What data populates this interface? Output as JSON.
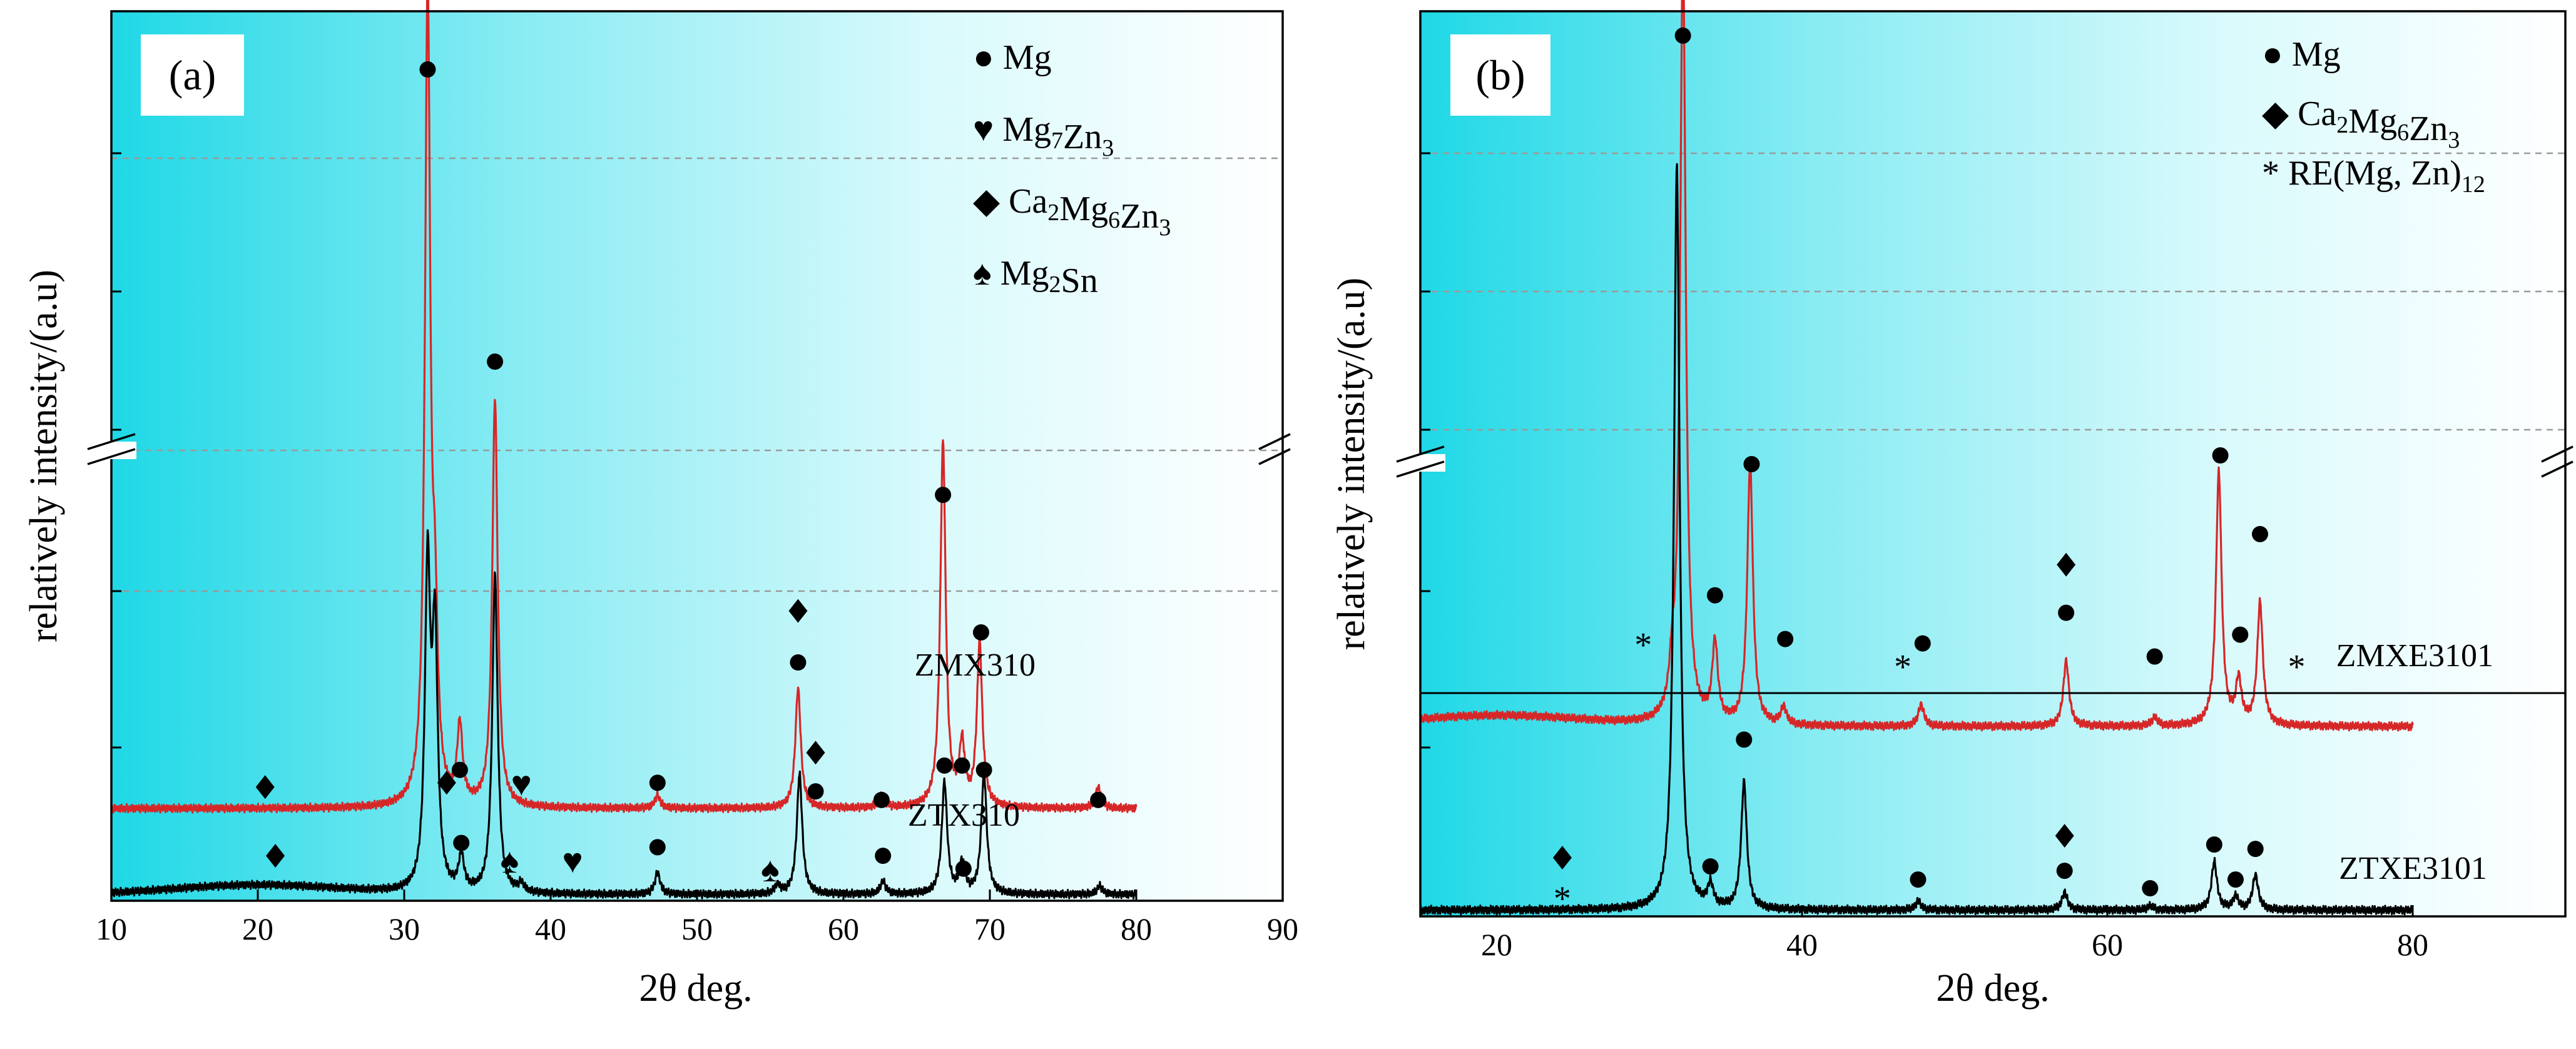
{
  "chart_data": [
    {
      "panel": "(a)",
      "type": "line",
      "xlabel": "2θ deg.",
      "ylabel": "relatively intensity/(a.u)",
      "xlim": [
        10,
        90
      ],
      "xticks": [
        10,
        20,
        30,
        40,
        50,
        60,
        70,
        80,
        90
      ],
      "y_axis_break": true,
      "legend": [
        {
          "symbol": "circle",
          "glyph": "●",
          "parts": [
            {
              "t": "Mg"
            }
          ]
        },
        {
          "symbol": "heart",
          "glyph": "♥",
          "parts": [
            {
              "t": "Mg"
            },
            {
              "t": "7",
              "sub": true
            },
            {
              "t": "Zn"
            },
            {
              "t": "3",
              "sub": true
            }
          ]
        },
        {
          "symbol": "diamond",
          "glyph": "◆",
          "parts": [
            {
              "t": "Ca"
            },
            {
              "t": "2",
              "sub": true
            },
            {
              "t": "Mg"
            },
            {
              "t": "6",
              "sub": true
            },
            {
              "t": "Zn"
            },
            {
              "t": "3",
              "sub": true
            }
          ]
        },
        {
          "symbol": "spade",
          "glyph": "♠",
          "parts": [
            {
              "t": "Mg"
            },
            {
              "t": "2",
              "sub": true
            },
            {
              "t": "Sn"
            }
          ]
        }
      ],
      "series": [
        {
          "name": "ZMX310",
          "color": "#d62728",
          "x_range": [
            10,
            80
          ],
          "baseline": 0.2,
          "hump_height": 0,
          "peaks": [
            [
              31.6,
              1.88
            ],
            [
              32.1,
              0.35
            ],
            [
              33.8,
              0.18
            ],
            [
              36.2,
              0.95
            ],
            [
              47.3,
              0.03
            ],
            [
              56.9,
              0.28
            ],
            [
              62.6,
              0.03
            ],
            [
              66.8,
              0.85
            ],
            [
              68.1,
              0.14
            ],
            [
              69.3,
              0.38
            ],
            [
              77.4,
              0.05
            ]
          ],
          "markers": [
            [
              20.5,
              0.25,
              "diamond"
            ],
            [
              31.6,
              1.92,
              "circle"
            ],
            [
              32.9,
              0.26,
              "diamond"
            ],
            [
              33.8,
              0.29,
              "circle"
            ],
            [
              36.2,
              1.24,
              "circle"
            ],
            [
              38.0,
              0.26,
              "heart"
            ],
            [
              47.3,
              0.26,
              "circle"
            ],
            [
              56.9,
              0.54,
              "circle"
            ],
            [
              56.9,
              0.66,
              "diamond"
            ],
            [
              62.6,
              0.22,
              "circle"
            ],
            [
              66.8,
              0.93,
              "circle"
            ],
            [
              68.1,
              0.3,
              "circle"
            ],
            [
              69.4,
              0.61,
              "circle"
            ],
            [
              77.4,
              0.22,
              "circle"
            ]
          ]
        },
        {
          "name": "ZTX310",
          "color": "#000000",
          "x_range": [
            10,
            80
          ],
          "baseline": 0.0,
          "hump_height": 0.022,
          "peaks": [
            [
              31.6,
              0.74
            ],
            [
              32.1,
              0.58
            ],
            [
              33.9,
              0.08
            ],
            [
              36.2,
              0.74
            ],
            [
              38.0,
              0.02
            ],
            [
              47.3,
              0.05
            ],
            [
              55.5,
              0.02
            ],
            [
              57.0,
              0.28
            ],
            [
              62.7,
              0.03
            ],
            [
              66.9,
              0.26
            ],
            [
              68.1,
              0.07
            ],
            [
              69.6,
              0.28
            ],
            [
              77.5,
              0.02
            ]
          ],
          "markers": [
            [
              21.2,
              0.09,
              "diamond"
            ],
            [
              33.9,
              0.12,
              "circle"
            ],
            [
              37.2,
              0.08,
              "spade"
            ],
            [
              41.5,
              0.08,
              "heart"
            ],
            [
              47.3,
              0.11,
              "circle"
            ],
            [
              55.0,
              0.06,
              "spade"
            ],
            [
              58.1,
              0.24,
              "circle"
            ],
            [
              58.1,
              0.33,
              "diamond"
            ],
            [
              62.7,
              0.09,
              "circle"
            ],
            [
              66.9,
              0.3,
              "circle"
            ],
            [
              68.2,
              0.06,
              "circle"
            ],
            [
              69.6,
              0.29,
              "circle"
            ]
          ]
        }
      ]
    },
    {
      "panel": "(b)",
      "type": "line",
      "xlabel": "2θ deg.",
      "ylabel": "relatively intensity/(a.u)",
      "xlim": [
        15,
        90
      ],
      "xticks": [
        20,
        40,
        60,
        80
      ],
      "y_axis_break": true,
      "legend": [
        {
          "symbol": "circle",
          "glyph": "●",
          "parts": [
            {
              "t": "Mg"
            }
          ]
        },
        {
          "symbol": "diamond",
          "glyph": "◆",
          "parts": [
            {
              "t": "Ca"
            },
            {
              "t": "2",
              "sub": true
            },
            {
              "t": "Mg"
            },
            {
              "t": "6",
              "sub": true
            },
            {
              "t": "Zn"
            },
            {
              "t": "3",
              "sub": true
            }
          ]
        },
        {
          "symbol": "asterisk",
          "glyph": "*",
          "parts": [
            {
              "t": "RE(Mg, Zn)"
            },
            {
              "t": "12",
              "sub": true
            }
          ]
        }
      ],
      "series": [
        {
          "name": "ZMXE3101",
          "color": "#d62728",
          "x_range": [
            15,
            80
          ],
          "baseline": 0.42,
          "hump_height": 0.025,
          "peaks": [
            [
              31.5,
              0.08
            ],
            [
              32.2,
              1.78
            ],
            [
              34.3,
              0.18
            ],
            [
              36.6,
              0.6
            ],
            [
              38.8,
              0.04
            ],
            [
              47.8,
              0.05
            ],
            [
              57.3,
              0.15
            ],
            [
              63.1,
              0.02
            ],
            [
              67.3,
              0.58
            ],
            [
              68.6,
              0.1
            ],
            [
              70.0,
              0.28
            ]
          ],
          "markers": [
            [
              32.2,
              2.0,
              "circle"
            ],
            [
              36.7,
              1.02,
              "circle"
            ],
            [
              34.3,
              0.72,
              "circle"
            ],
            [
              38.9,
              0.62,
              "circle"
            ],
            [
              47.9,
              0.61,
              "circle"
            ],
            [
              57.3,
              0.68,
              "circle"
            ],
            [
              57.3,
              0.79,
              "diamond"
            ],
            [
              63.1,
              0.58,
              "circle"
            ],
            [
              67.4,
              1.04,
              "circle"
            ],
            [
              68.7,
              0.63,
              "circle"
            ],
            [
              70.0,
              0.86,
              "circle"
            ],
            [
              29.6,
              0.62,
              "asterisk"
            ],
            [
              46.6,
              0.57,
              "asterisk"
            ],
            [
              72.4,
              0.57,
              "asterisk"
            ]
          ]
        },
        {
          "name": "ZTXE3101",
          "color": "#000000",
          "x_range": [
            15,
            80
          ],
          "baseline": 0.0,
          "hump_height": 0,
          "peaks": [
            [
              31.8,
              1.7
            ],
            [
              34.0,
              0.05
            ],
            [
              36.2,
              0.29
            ],
            [
              47.6,
              0.02
            ],
            [
              57.2,
              0.04
            ],
            [
              62.8,
              0.01
            ],
            [
              67.0,
              0.11
            ],
            [
              68.4,
              0.03
            ],
            [
              69.7,
              0.08
            ]
          ],
          "markers": [
            [
              34.0,
              0.1,
              "circle"
            ],
            [
              36.2,
              0.39,
              "circle"
            ],
            [
              24.3,
              0.12,
              "diamond"
            ],
            [
              24.3,
              0.04,
              "asterisk"
            ],
            [
              47.6,
              0.07,
              "circle"
            ],
            [
              57.2,
              0.09,
              "circle"
            ],
            [
              57.2,
              0.17,
              "diamond"
            ],
            [
              62.8,
              0.05,
              "circle"
            ],
            [
              67.0,
              0.15,
              "circle"
            ],
            [
              68.4,
              0.07,
              "circle"
            ],
            [
              69.7,
              0.14,
              "circle"
            ]
          ]
        }
      ]
    }
  ]
}
